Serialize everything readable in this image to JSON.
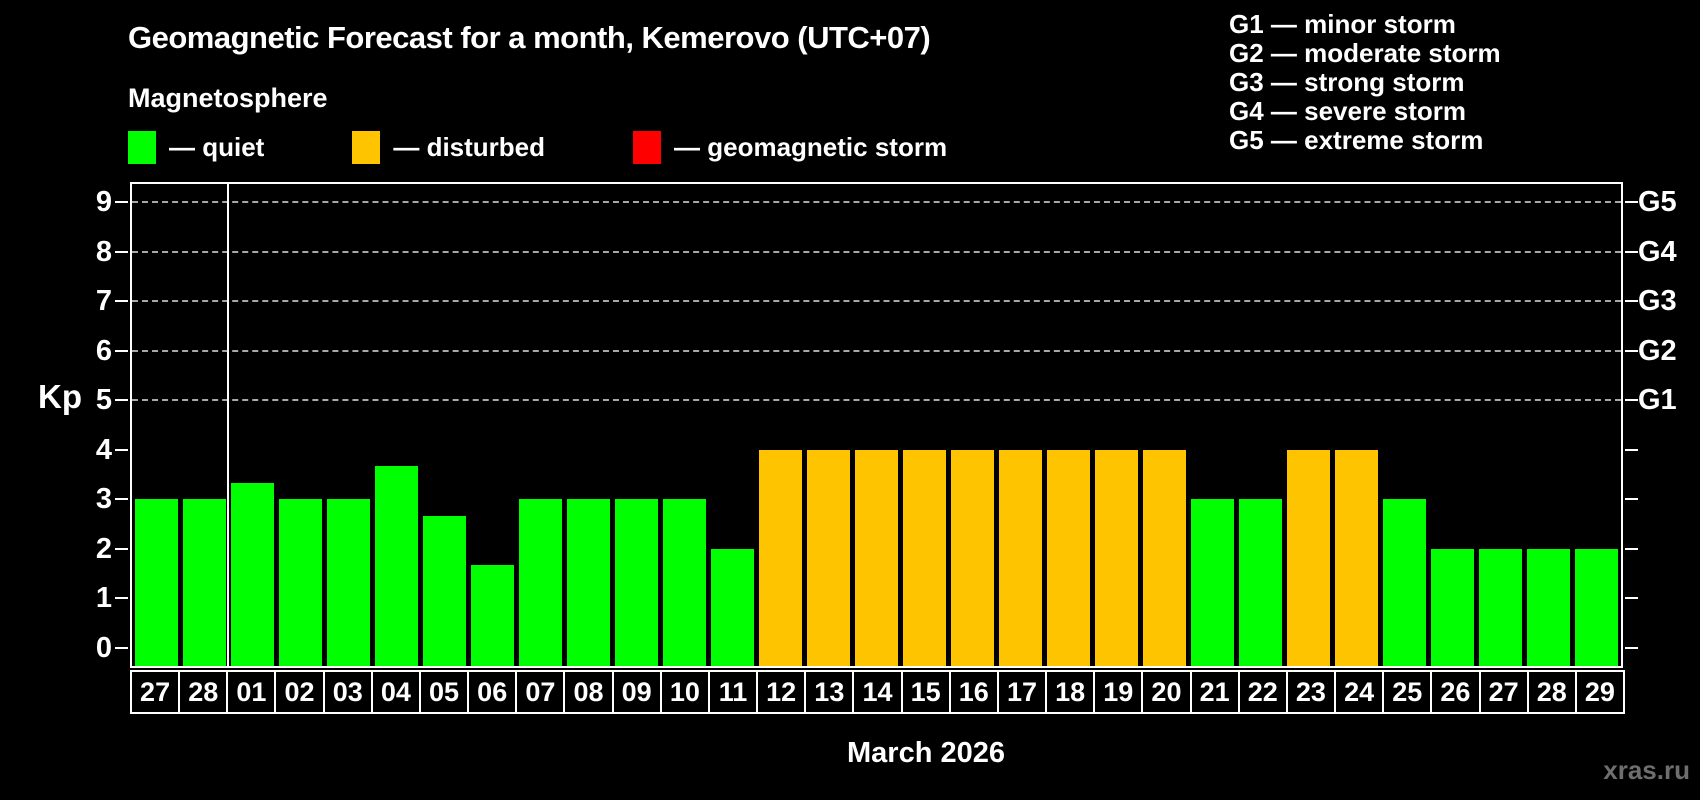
{
  "title": "Geomagnetic Forecast for a month, Kemerovo (UTC+07)",
  "subtitle": "Magnetosphere",
  "legend": [
    {
      "id": "quiet",
      "label": "— quiet",
      "color": "#00ff00"
    },
    {
      "id": "disturbed",
      "label": "— disturbed",
      "color": "#ffc400"
    },
    {
      "id": "storm",
      "label": "— geomagnetic storm",
      "color": "#ff0000"
    }
  ],
  "g_scale_legend": [
    "G1 — minor storm",
    "G2 — moderate storm",
    "G3 — strong storm",
    "G4 — severe storm",
    "G5 — extreme storm"
  ],
  "watermark": "xras.ru",
  "colors": {
    "background": "#000000",
    "text": "#ffffff",
    "axis": "#ffffff",
    "gridline": "#a8a8a8",
    "watermark": "#6e6e6e"
  },
  "chart_data": {
    "type": "bar",
    "title": "Geomagnetic Forecast for a month, Kemerovo (UTC+07)",
    "xlabel": "March 2026",
    "ylabel": "Kp",
    "ylim": [
      0,
      9
    ],
    "y_ticks": [
      0,
      1,
      2,
      3,
      4,
      5,
      6,
      7,
      8,
      9
    ],
    "gridlines_at_kp": [
      5,
      6,
      7,
      8,
      9
    ],
    "grid_style": "horizontal dashed gray lines at G-storm levels only",
    "legend_position": "top",
    "right_axis_labels": [
      {
        "label": "G1",
        "kp": 5
      },
      {
        "label": "G2",
        "kp": 6
      },
      {
        "label": "G3",
        "kp": 7
      },
      {
        "label": "G4",
        "kp": 8
      },
      {
        "label": "G5",
        "kp": 9
      }
    ],
    "month_separator_after_index": 1,
    "categories": [
      "27",
      "28",
      "01",
      "02",
      "03",
      "04",
      "05",
      "06",
      "07",
      "08",
      "09",
      "10",
      "11",
      "12",
      "13",
      "14",
      "15",
      "16",
      "17",
      "18",
      "19",
      "20",
      "21",
      "22",
      "23",
      "24",
      "25",
      "26",
      "27",
      "28",
      "29"
    ],
    "values": [
      3,
      3,
      3.33,
      3,
      3,
      3.67,
      2.67,
      1.67,
      3,
      3,
      3,
      3,
      2,
      4,
      4,
      4,
      4,
      4,
      4,
      4,
      4,
      4,
      3,
      3,
      4,
      4,
      3,
      2,
      2,
      2,
      2
    ],
    "statuses": [
      "quiet",
      "quiet",
      "quiet",
      "quiet",
      "quiet",
      "quiet",
      "quiet",
      "quiet",
      "quiet",
      "quiet",
      "quiet",
      "quiet",
      "quiet",
      "disturbed",
      "disturbed",
      "disturbed",
      "disturbed",
      "disturbed",
      "disturbed",
      "disturbed",
      "disturbed",
      "disturbed",
      "quiet",
      "quiet",
      "disturbed",
      "disturbed",
      "quiet",
      "quiet",
      "quiet",
      "quiet",
      "quiet"
    ],
    "status_colors": {
      "quiet": "#00ff00",
      "disturbed": "#ffc400",
      "storm": "#ff0000"
    }
  }
}
